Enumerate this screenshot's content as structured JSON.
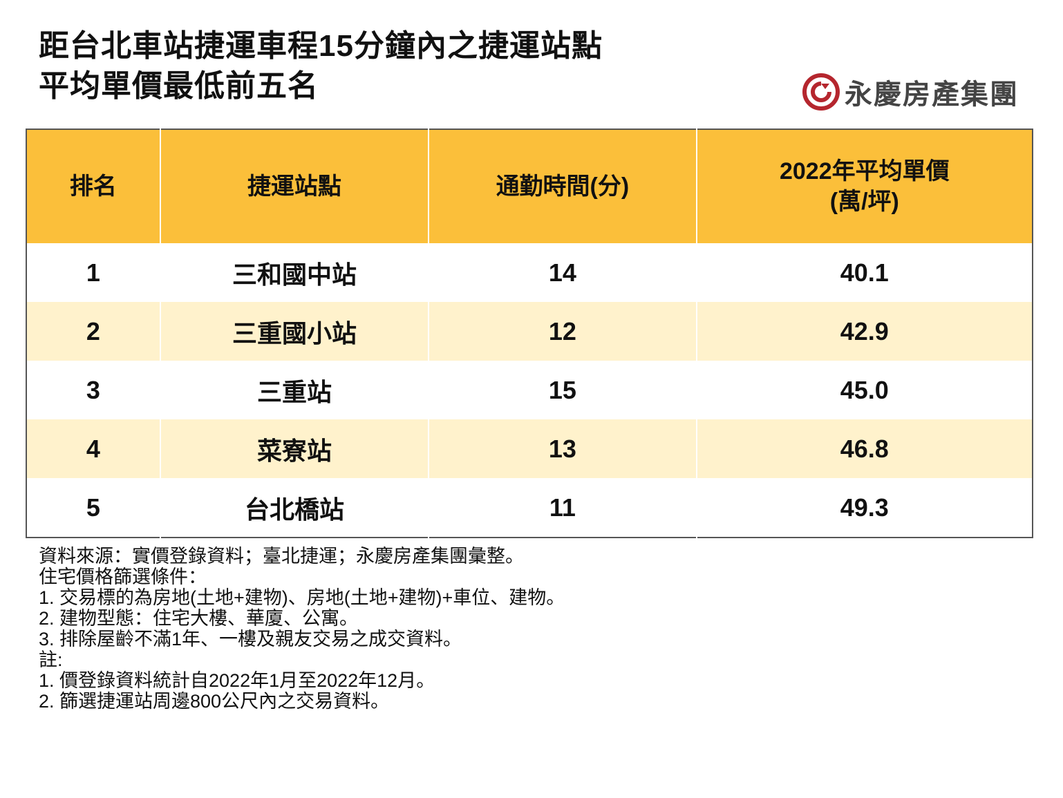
{
  "title": {
    "line1": "距台北車站捷運車程15分鐘內之捷運站點",
    "line2": "平均單價最低前五名"
  },
  "logo": {
    "text": "永慶房產集團",
    "color": "#B5262E"
  },
  "colors": {
    "header": "#FBBF3A",
    "alt_row": "#FFF2CC"
  },
  "chart_data": {
    "type": "table",
    "columns": [
      "排名",
      "捷運站點",
      "通勤時間(分)",
      "2022年平均單價",
      "(萬/坪)"
    ],
    "rows": [
      {
        "rank": "1",
        "station": "三和國中站",
        "commute": "14",
        "price": "40.1"
      },
      {
        "rank": "2",
        "station": "三重國小站",
        "commute": "12",
        "price": "42.9"
      },
      {
        "rank": "3",
        "station": "三重站",
        "commute": "15",
        "price": "45.0"
      },
      {
        "rank": "4",
        "station": "菜寮站",
        "commute": "13",
        "price": "46.8"
      },
      {
        "rank": "5",
        "station": "台北橋站",
        "commute": "11",
        "price": "49.3"
      }
    ]
  },
  "notes": [
    "資料來源：實價登錄資料；臺北捷運；永慶房產集團彙整。",
    "住宅價格篩選條件：",
    "1.  交易標的為房地(土地+建物)、房地(土地+建物)+車位、建物。",
    "2.  建物型態：住宅大樓、華廈、公寓。",
    "3.  排除屋齡不滿1年、一樓及親友交易之成交資料。",
    "註:",
    "1.  價登錄資料統計自2022年1月至2022年12月。",
    "2.  篩選捷運站周邊800公尺內之交易資料。"
  ]
}
